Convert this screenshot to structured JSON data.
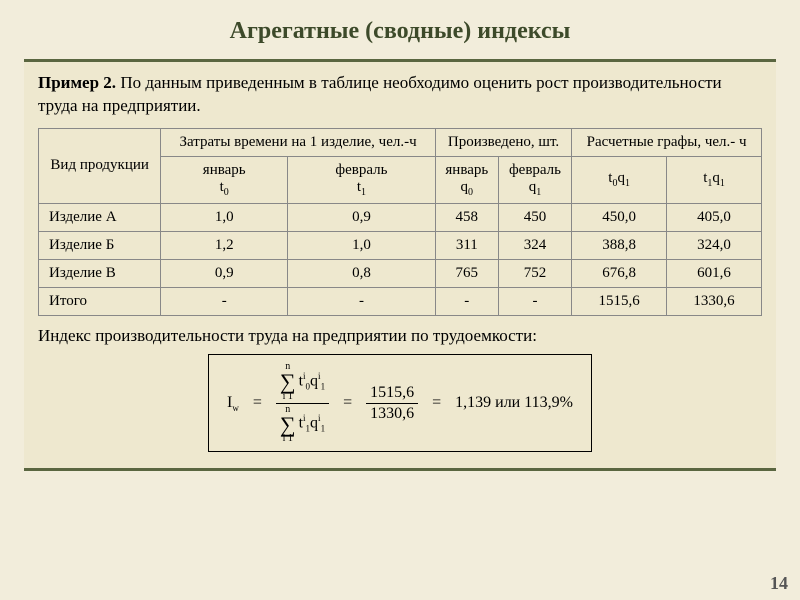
{
  "title": "Агрегатные (сводные) индексы",
  "example": {
    "label": "Пример 2.",
    "text": "По данным приведенным в таблице необходимо оценить рост производительности труда на предприятии."
  },
  "table": {
    "header": {
      "row_label": "Вид продукции",
      "group1": "Затраты времени на 1 изделие, чел.-ч",
      "group2": "Произведено, шт.",
      "group3": "Расчетные графы, чел.- ч",
      "g1c1_line1": "январь",
      "g1c1_line2": "t",
      "g1c1_sub": "0",
      "g1c2_line1": "февраль",
      "g1c2_line2": "t",
      "g1c2_sub": "1",
      "g2c1_line1": "январь",
      "g2c1_line2": "q",
      "g2c1_sub": "0",
      "g2c2_line1": "февраль",
      "g2c2_line2": "q",
      "g2c2_sub": "1",
      "g3c1_a": "t",
      "g3c1_asub": "0",
      "g3c1_b": "q",
      "g3c1_bsub": "1",
      "g3c2_a": "t",
      "g3c2_asub": "1",
      "g3c2_b": "q",
      "g3c2_bsub": "1"
    },
    "rows": {
      "r1": {
        "name": "Изделие А",
        "c1": "1,0",
        "c2": "0,9",
        "c3": "458",
        "c4": "450",
        "c5": "450,0",
        "c6": "405,0"
      },
      "r2": {
        "name": "Изделие Б",
        "c1": "1,2",
        "c2": "1,0",
        "c3": "311",
        "c4": "324",
        "c5": "388,8",
        "c6": "324,0"
      },
      "r3": {
        "name": "Изделие В",
        "c1": "0,9",
        "c2": "0,8",
        "c3": "765",
        "c4": "752",
        "c5": "676,8",
        "c6": "601,6"
      },
      "r4": {
        "name": "Итого",
        "c1": "-",
        "c2": "-",
        "c3": "-",
        "c4": "-",
        "c5": "1515,6",
        "c6": "1330,6"
      }
    }
  },
  "caption": "Индекс производительности труда на предприятии по трудоемкости:",
  "formula": {
    "lhs_var": "I",
    "lhs_sub": "w",
    "sum_top": "n",
    "sum_bot": "i   1",
    "num_t": "t",
    "num_t_sub": "0",
    "num_t_sup": "i",
    "num_q": "q",
    "num_q_sub": "1",
    "num_q_sup": "i",
    "den_t": "t",
    "den_t_sub": "1",
    "den_t_sup": "i",
    "den_q": "q",
    "den_q_sub": "1",
    "den_q_sup": "i",
    "val_num": "1515,6",
    "val_den": "1330,6",
    "result": "1,139  или  113,9%",
    "eq": "="
  },
  "page_number": "14",
  "colors": {
    "bg": "#f2eddb",
    "panel": "#eee8cf",
    "border": "#5a6640",
    "title": "#3d4a2a"
  }
}
